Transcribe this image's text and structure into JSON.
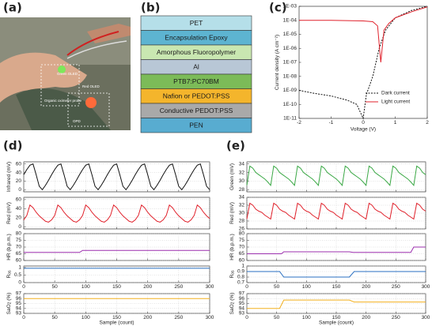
{
  "panels": [
    "(a)",
    "(b)",
    "(c)",
    "(d)",
    "(e)"
  ],
  "photo": {
    "labels": [
      "Green OLED",
      "Red OLED",
      "Organic oximeter probe",
      "OPD"
    ]
  },
  "stack": {
    "layers": [
      {
        "name": "PET",
        "color": "#b5dfe9"
      },
      {
        "name": "Encapsulation Epoxy",
        "color": "#5db4d1"
      },
      {
        "name": "Amorphous Fluoropolymer",
        "color": "#c9e7b1"
      },
      {
        "name": "Al",
        "color": "#b8c7d6"
      },
      {
        "name": "PTB7:PC70BM",
        "color": "#7cbb58"
      },
      {
        "name": "Nafion or PEDOT:PSS",
        "color": "#f4b52c"
      },
      {
        "name": "Conductive PEDOT:PSS",
        "color": "#a9a9a9"
      },
      {
        "name": "PEN",
        "color": "#58acd0"
      }
    ]
  },
  "chart_data": [
    {
      "type": "line",
      "ylog": true,
      "xlabel": "Voltage (V)",
      "ylabel": "Current density (A cm⁻²)",
      "xlim": [
        -2,
        2
      ],
      "xticks": [
        -2,
        -1,
        0,
        1,
        2
      ],
      "ylim": [
        1e-11,
        0.001
      ],
      "yticks": [
        {
          "value": 1e-11,
          "label": "1E-11"
        },
        {
          "value": 1e-10,
          "label": "1E-10"
        },
        {
          "value": 1e-09,
          "label": "1E-09"
        },
        {
          "value": 1e-08,
          "label": "1E-08"
        },
        {
          "value": 1e-07,
          "label": "1E-07"
        },
        {
          "value": 1e-06,
          "label": "1E-06"
        },
        {
          "value": 1e-05,
          "label": "1E-05"
        },
        {
          "value": 0.0001,
          "label": "1E-04"
        },
        {
          "value": 0.001,
          "label": "1E-03"
        }
      ],
      "legend": "lower right",
      "series": [
        {
          "name": "Dark current",
          "color": "#111111",
          "dash": true,
          "x": [
            -2,
            -1.5,
            -1,
            -0.5,
            -0.2,
            0,
            0.1,
            0.3,
            0.5,
            0.7,
            1,
            1.5,
            2
          ],
          "values": [
            1e-09,
            6e-10,
            4e-10,
            2e-10,
            1e-10,
            1e-11,
            5e-10,
            1e-08,
            1e-06,
            2e-05,
            0.00015,
            0.0005,
            0.001
          ]
        },
        {
          "name": "Light current",
          "color": "#e0212b",
          "x": [
            -2,
            -1,
            0,
            0.3,
            0.45,
            0.55,
            0.65,
            0.8,
            1,
            1.5,
            2
          ],
          "values": [
            0.0001,
            0.0001,
            9e-05,
            8e-05,
            4e-05,
            1e-07,
            2e-05,
            6e-05,
            0.00015,
            0.0004,
            0.0009
          ]
        }
      ]
    },
    {
      "type": "line",
      "grid": true,
      "ylabel": "Infrared (mV)",
      "xlim": [
        0,
        300
      ],
      "xticks": [
        0,
        50,
        100,
        150,
        200,
        250,
        300
      ],
      "ylim": [
        -5,
        65
      ],
      "yticks": [
        0,
        20,
        40,
        60
      ],
      "series": [
        {
          "color": "#111111",
          "x": [
            0,
            5,
            10,
            15,
            20,
            25,
            30,
            35,
            40,
            45,
            50,
            55,
            60,
            65,
            70,
            75,
            80,
            85,
            90,
            95,
            100,
            105,
            110,
            115,
            120,
            125,
            130,
            135,
            140,
            145,
            150,
            155,
            160,
            165,
            170,
            175,
            180,
            185,
            190,
            195,
            200,
            205,
            210,
            215,
            220,
            225,
            230,
            235,
            240,
            245,
            250,
            255,
            260,
            265,
            270,
            275,
            280,
            285,
            290,
            295,
            300
          ],
          "values": [
            35,
            47,
            57,
            60,
            35,
            8,
            0,
            10,
            22,
            35,
            47,
            57,
            60,
            35,
            8,
            0,
            10,
            22,
            35,
            47,
            57,
            60,
            35,
            8,
            0,
            10,
            22,
            35,
            47,
            57,
            60,
            35,
            8,
            0,
            10,
            22,
            35,
            47,
            57,
            60,
            35,
            8,
            0,
            10,
            22,
            35,
            47,
            57,
            60,
            35,
            8,
            0,
            10,
            22,
            35,
            47,
            57,
            60,
            35,
            8,
            0
          ]
        }
      ]
    },
    {
      "type": "line",
      "grid": true,
      "ylabel": "Red (mV)",
      "xlim": [
        0,
        300
      ],
      "xticks": [
        0,
        50,
        100,
        150,
        200,
        250,
        300
      ],
      "ylim": [
        -5,
        65
      ],
      "yticks": [
        0,
        20,
        40,
        60
      ],
      "series": [
        {
          "color": "#e0212b",
          "x": [
            0,
            5,
            10,
            15,
            20,
            25,
            30,
            35,
            40,
            45,
            50,
            55,
            60,
            65,
            70,
            75,
            80,
            85,
            90,
            95,
            100,
            105,
            110,
            115,
            120,
            125,
            130,
            135,
            140,
            145,
            150,
            155,
            160,
            165,
            170,
            175,
            180,
            185,
            190,
            195,
            200,
            205,
            210,
            215,
            220,
            225,
            230,
            235,
            240,
            245,
            250,
            255,
            260,
            265,
            270,
            275,
            280,
            285,
            290,
            295,
            300
          ],
          "values": [
            15,
            25,
            48,
            42,
            32,
            24,
            18,
            12,
            10,
            15,
            25,
            48,
            42,
            32,
            24,
            18,
            12,
            10,
            15,
            25,
            48,
            42,
            32,
            24,
            18,
            12,
            10,
            15,
            25,
            48,
            42,
            32,
            24,
            18,
            12,
            10,
            15,
            25,
            48,
            42,
            32,
            24,
            18,
            12,
            10,
            15,
            25,
            48,
            42,
            32,
            24,
            18,
            12,
            10,
            15,
            25,
            48,
            42,
            32,
            24,
            18
          ]
        }
      ]
    },
    {
      "type": "line",
      "grid": true,
      "ylabel": "HR (b.p.m.)",
      "xlim": [
        0,
        300
      ],
      "xticks": [
        0,
        50,
        100,
        150,
        200,
        250,
        300
      ],
      "ylim": [
        60,
        80
      ],
      "yticks": [
        60,
        65,
        70,
        75,
        80
      ],
      "series": [
        {
          "color": "#9b2fae",
          "x": [
            0,
            90,
            95,
            300
          ],
          "values": [
            66,
            66,
            67.5,
            67.5
          ]
        }
      ]
    },
    {
      "type": "line",
      "grid": true,
      "show_xtick_labels": true,
      "ylabel": "R",
      "ylabel_sub": "os",
      "xlim": [
        0,
        300
      ],
      "xticks": [
        0,
        50,
        100,
        150,
        200,
        250,
        300
      ],
      "ylim": [
        0,
        1.1
      ],
      "yticks": [
        0,
        0.5,
        1
      ],
      "series": [
        {
          "color": "#2a6fc0",
          "x": [
            0,
            300
          ],
          "values": [
            0.95,
            0.95
          ]
        }
      ]
    },
    {
      "type": "line",
      "grid": true,
      "show_xtick_labels": true,
      "xlabel": "Sample (count)",
      "ylabel": "SaO",
      "ylabel_sub": "2",
      "ylabel_tail": " (%)",
      "xlim": [
        0,
        300
      ],
      "xticks": [
        0,
        50,
        100,
        150,
        200,
        250,
        300
      ],
      "ylim": [
        93,
        97
      ],
      "yticks": [
        93,
        94,
        95,
        96,
        97
      ],
      "series": [
        {
          "color": "#f2b01e",
          "x": [
            0,
            300
          ],
          "values": [
            96,
            96
          ]
        }
      ]
    },
    {
      "type": "line",
      "grid": true,
      "ylabel": "Green (mV)",
      "xlim": [
        0,
        300
      ],
      "xticks": [
        0,
        50,
        100,
        150,
        200,
        250,
        300
      ],
      "ylim": [
        27.5,
        34.5
      ],
      "yticks": [
        28,
        30,
        32,
        34
      ],
      "series": [
        {
          "color": "#3aa845",
          "x": [
            0,
            5,
            10,
            15,
            20,
            25,
            30,
            35,
            40,
            45,
            50,
            55,
            60,
            65,
            70,
            75,
            80,
            85,
            90,
            95,
            100,
            105,
            110,
            115,
            120,
            125,
            130,
            135,
            140,
            145,
            150,
            155,
            160,
            165,
            170,
            175,
            180,
            185,
            190,
            195,
            200,
            205,
            210,
            215,
            220,
            225,
            230,
            235,
            240,
            245,
            250,
            255,
            260,
            265,
            270,
            275,
            280,
            285,
            290,
            295,
            300
          ],
          "values": [
            29,
            33.5,
            33,
            32,
            31.5,
            31,
            30.5,
            29.8,
            29,
            33.5,
            33,
            32,
            31.5,
            31,
            30.5,
            29.8,
            29,
            33.5,
            33,
            32,
            31.5,
            31,
            30.5,
            29.8,
            29,
            33.5,
            33,
            32,
            31.5,
            31,
            30.5,
            29.8,
            29,
            33.5,
            33,
            32,
            31.5,
            31,
            30.5,
            29.8,
            29,
            33.5,
            33,
            32,
            31.5,
            31,
            30.5,
            29.8,
            29,
            33.5,
            33,
            32,
            31.5,
            31,
            30.5,
            29.8,
            29,
            33.5,
            33,
            32,
            31.5
          ]
        }
      ]
    },
    {
      "type": "line",
      "grid": true,
      "ylabel": "Red (mV)",
      "xlim": [
        0,
        300
      ],
      "xticks": [
        0,
        50,
        100,
        150,
        200,
        250,
        300
      ],
      "ylim": [
        26,
        34
      ],
      "yticks": [
        26,
        28,
        30,
        32,
        34
      ],
      "series": [
        {
          "color": "#e0212b",
          "x": [
            0,
            5,
            10,
            15,
            20,
            25,
            30,
            35,
            40,
            45,
            50,
            55,
            60,
            65,
            70,
            75,
            80,
            85,
            90,
            95,
            100,
            105,
            110,
            115,
            120,
            125,
            130,
            135,
            140,
            145,
            150,
            155,
            160,
            165,
            170,
            175,
            180,
            185,
            190,
            195,
            200,
            205,
            210,
            215,
            220,
            225,
            230,
            235,
            240,
            245,
            250,
            255,
            260,
            265,
            270,
            275,
            280,
            285,
            290,
            295,
            300
          ],
          "values": [
            28.5,
            32.5,
            32,
            31,
            30.5,
            30.2,
            29.5,
            29,
            28.5,
            32.5,
            32,
            31,
            30.5,
            30.2,
            29.5,
            29,
            28.5,
            32.5,
            32,
            31,
            30.5,
            30.2,
            29.5,
            29,
            28.5,
            32.5,
            32,
            31,
            30.5,
            30.2,
            29.5,
            29,
            28.5,
            32.5,
            32,
            31,
            30.5,
            30.2,
            29.5,
            29,
            28.5,
            32.5,
            32,
            31,
            30.5,
            30.2,
            29.5,
            29,
            28.5,
            32.5,
            32,
            31,
            30.5,
            30.2,
            29.5,
            29,
            28.5,
            32.5,
            32,
            31,
            30.5
          ]
        }
      ]
    },
    {
      "type": "line",
      "grid": true,
      "ylabel": "HR (b.p.m.)",
      "xlim": [
        0,
        300
      ],
      "xticks": [
        0,
        50,
        100,
        150,
        200,
        250,
        300
      ],
      "ylim": [
        60,
        80
      ],
      "yticks": [
        60,
        65,
        70,
        75,
        80
      ],
      "series": [
        {
          "color": "#9b2fae",
          "x": [
            0,
            58,
            62,
            172,
            178,
            275,
            280,
            300
          ],
          "values": [
            65,
            65,
            66.5,
            66.5,
            66,
            66,
            70,
            70
          ]
        }
      ]
    },
    {
      "type": "line",
      "grid": true,
      "show_xtick_labels": true,
      "ylabel": "R",
      "ylabel_sub": "os",
      "xlim": [
        0,
        300
      ],
      "xticks": [
        0,
        50,
        100,
        150,
        200,
        250,
        300
      ],
      "ylim": [
        0.7,
        1
      ],
      "yticks": [
        0.7,
        0.8,
        0.9,
        1
      ],
      "series": [
        {
          "color": "#2a6fc0",
          "x": [
            0,
            55,
            62,
            172,
            180,
            300
          ],
          "values": [
            0.9,
            0.9,
            0.8,
            0.8,
            0.9,
            0.9
          ]
        }
      ]
    },
    {
      "type": "line",
      "grid": true,
      "show_xtick_labels": true,
      "xlabel": "Sample (count)",
      "ylabel": "SaO",
      "ylabel_sub": "2",
      "ylabel_tail": " (%)",
      "xlim": [
        0,
        300
      ],
      "xticks": [
        0,
        50,
        100,
        150,
        200,
        250,
        300
      ],
      "ylim": [
        93,
        97
      ],
      "yticks": [
        93,
        94,
        95,
        96,
        97
      ],
      "series": [
        {
          "color": "#f2b01e",
          "x": [
            0,
            55,
            62,
            172,
            180,
            300
          ],
          "values": [
            94,
            94,
            95.7,
            95.7,
            95.3,
            95.3
          ]
        }
      ]
    }
  ]
}
